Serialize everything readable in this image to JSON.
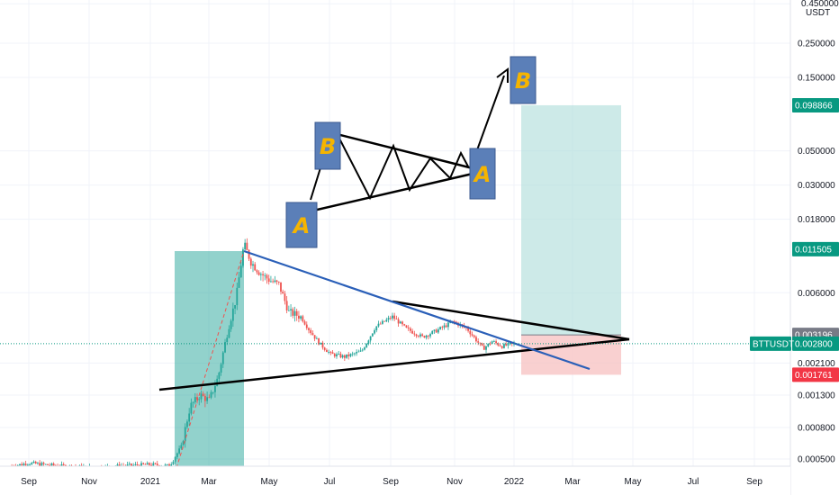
{
  "chart_data": {
    "type": "candlestick",
    "symbol": "BTTUSDT",
    "currency": "USDT",
    "scale": "log",
    "y_axis_ticks": [
      0.0005,
      0.0008,
      0.0013,
      0.0021,
      0.006,
      0.018,
      0.03,
      0.05,
      0.15,
      0.25,
      0.45
    ],
    "y_axis_tick_labels": [
      "0.000500",
      "0.000800",
      "0.001300",
      "0.002100",
      "0.006000",
      "0.018000",
      "0.030000",
      "0.050000",
      "0.150000",
      "0.250000",
      "0.450000"
    ],
    "x_axis_labels": [
      "Sep",
      "Nov",
      "2021",
      "Mar",
      "May",
      "Jul",
      "Sep",
      "Nov",
      "2022",
      "Mar",
      "May",
      "Jul",
      "Sep"
    ],
    "price_tags": [
      {
        "label": "0.098866",
        "value": 0.098866,
        "color": "#089981"
      },
      {
        "label": "0.011505",
        "value": 0.011505,
        "color": "#089981"
      },
      {
        "label": "0.003196",
        "value": 0.003196,
        "color": "#787b86"
      },
      {
        "label": "0.002800",
        "value": 0.0028,
        "color": "#089981"
      },
      {
        "label": "0.001761",
        "value": 0.001761,
        "color": "#f23645"
      }
    ],
    "current_price": 0.0028,
    "series": [
      {
        "points": [
          [
            "2020-08-15",
            0.00045
          ],
          [
            "2020-09-01",
            0.00047
          ],
          [
            "2020-10-01",
            0.00045
          ],
          [
            "2020-11-01",
            0.00044
          ],
          [
            "2020-12-01",
            0.00045
          ],
          [
            "2021-01-01",
            0.00046
          ],
          [
            "2021-01-20",
            0.00045
          ],
          [
            "2021-02-01",
            0.0006
          ],
          [
            "2021-02-10",
            0.0011
          ],
          [
            "2021-02-20",
            0.0013
          ],
          [
            "2021-03-01",
            0.0012
          ],
          [
            "2021-03-10",
            0.0017
          ],
          [
            "2021-03-20",
            0.0035
          ],
          [
            "2021-03-28",
            0.0055
          ],
          [
            "2021-04-05",
            0.0125
          ],
          [
            "2021-04-12",
            0.0095
          ],
          [
            "2021-04-20",
            0.0082
          ],
          [
            "2021-05-01",
            0.0072
          ],
          [
            "2021-05-10",
            0.0068
          ],
          [
            "2021-05-20",
            0.0045
          ],
          [
            "2021-06-01",
            0.0042
          ],
          [
            "2021-06-10",
            0.0034
          ],
          [
            "2021-06-20",
            0.0028
          ],
          [
            "2021-07-01",
            0.0024
          ],
          [
            "2021-07-15",
            0.0023
          ],
          [
            "2021-08-01",
            0.0025
          ],
          [
            "2021-08-15",
            0.0036
          ],
          [
            "2021-09-01",
            0.0042
          ],
          [
            "2021-09-15",
            0.0035
          ],
          [
            "2021-10-01",
            0.0031
          ],
          [
            "2021-10-15",
            0.0034
          ],
          [
            "2021-11-01",
            0.0039
          ],
          [
            "2021-11-15",
            0.0035
          ],
          [
            "2021-12-01",
            0.0026
          ],
          [
            "2021-12-10",
            0.0029
          ],
          [
            "2021-12-20",
            0.0027
          ],
          [
            "2022-01-01",
            0.0028
          ]
        ]
      }
    ],
    "annotations": {
      "pattern_labels": [
        "A",
        "B",
        "A",
        "B"
      ],
      "long_position": {
        "entry": 0.003196,
        "target": 0.098866,
        "stop": 0.001761
      }
    }
  }
}
